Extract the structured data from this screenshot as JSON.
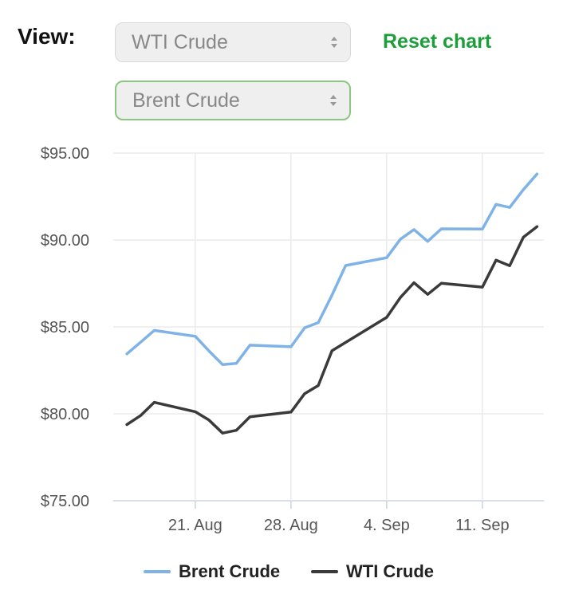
{
  "controls": {
    "view_label": "View:",
    "select1_value": "WTI Crude",
    "select2_value": "Brent Crude",
    "reset_label": "Reset chart"
  },
  "colors": {
    "brent": "#7fb3e8",
    "wti": "#3a3a3a",
    "accent": "#1e9e3a",
    "focus": "#8bc77e"
  },
  "chart_data": {
    "type": "line",
    "y_ticks": [
      "$95.00",
      "$90.00",
      "$85.00",
      "$80.00",
      "$75.00"
    ],
    "x_ticks": [
      "21. Aug",
      "28. Aug",
      "4. Sep",
      "11. Sep"
    ],
    "ylim": [
      75,
      95
    ],
    "grid": true,
    "legend_position": "bottom",
    "series": [
      {
        "name": "Brent Crude",
        "color": "#7fb3e8",
        "points": [
          [
            "Aug 16",
            83.45
          ],
          [
            "Aug 17",
            84.12
          ],
          [
            "Aug 18",
            84.8
          ],
          [
            "Aug 21",
            84.46
          ],
          [
            "Aug 22",
            83.62
          ],
          [
            "Aug 23",
            82.83
          ],
          [
            "Aug 24",
            82.9
          ],
          [
            "Aug 25",
            83.95
          ],
          [
            "Aug 28",
            83.86
          ],
          [
            "Aug 29",
            84.95
          ],
          [
            "Aug 30",
            85.25
          ],
          [
            "Aug 31",
            86.83
          ],
          [
            "Sep 1",
            88.53
          ],
          [
            "Sep 4",
            88.98
          ],
          [
            "Sep 5",
            90.04
          ],
          [
            "Sep 6",
            90.6
          ],
          [
            "Sep 7",
            89.92
          ],
          [
            "Sep 8",
            90.64
          ],
          [
            "Sep 11",
            90.63
          ],
          [
            "Sep 12",
            92.05
          ],
          [
            "Sep 13",
            91.87
          ],
          [
            "Sep 14",
            92.9
          ],
          [
            "Sep 15",
            93.8
          ]
        ]
      },
      {
        "name": "WTI Crude",
        "color": "#3a3a3a",
        "points": [
          [
            "Aug 16",
            79.38
          ],
          [
            "Aug 17",
            79.9
          ],
          [
            "Aug 18",
            80.66
          ],
          [
            "Aug 21",
            80.12
          ],
          [
            "Aug 22",
            79.64
          ],
          [
            "Aug 23",
            78.89
          ],
          [
            "Aug 24",
            79.05
          ],
          [
            "Aug 25",
            79.83
          ],
          [
            "Aug 28",
            80.1
          ],
          [
            "Aug 29",
            81.16
          ],
          [
            "Aug 30",
            81.63
          ],
          [
            "Aug 31",
            83.63
          ],
          [
            "Sep 4",
            85.55
          ],
          [
            "Sep 5",
            86.69
          ],
          [
            "Sep 6",
            87.54
          ],
          [
            "Sep 7",
            86.87
          ],
          [
            "Sep 8",
            87.51
          ],
          [
            "Sep 11",
            87.29
          ],
          [
            "Sep 12",
            88.84
          ],
          [
            "Sep 13",
            88.52
          ],
          [
            "Sep 14",
            90.16
          ],
          [
            "Sep 15",
            90.77
          ]
        ]
      }
    ]
  }
}
